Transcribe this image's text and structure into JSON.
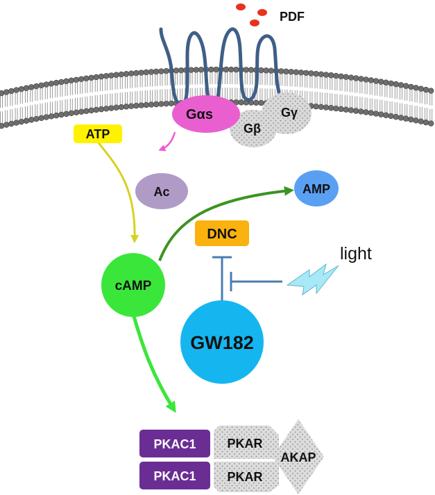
{
  "ligand": {
    "label": "PDF"
  },
  "g_protein": {
    "alpha": "Gαs",
    "beta": "Gβ",
    "gamma": "Gγ"
  },
  "nodes": {
    "atp": "ATP",
    "ac": "Ac",
    "amp": "AMP",
    "dnc": "DNC",
    "camp": "cAMP",
    "gw182": "GW182",
    "light": "light"
  },
  "pka_complex": {
    "catalytic_top": "PKAC1",
    "catalytic_bottom": "PKAC1",
    "regulatory_top": "PKAR",
    "regulatory_bottom": "PKAR",
    "anchor": "AKAP"
  },
  "colors": {
    "receptor": "#3f5f86",
    "ligand_dots": "#e8321e",
    "g_alpha": "#ea5fcf",
    "g_beta_gamma": "#d9d9d9",
    "atp_box": "#fff200",
    "ac_node": "#b09bc7",
    "amp_node": "#5aa0f2",
    "dnc_box": "#fbb20f",
    "camp_node": "#3be63b",
    "gw182_node": "#15b6ef",
    "pkac": "#6a2d94",
    "pkar_akap": "#dcdcdc",
    "arrow_magenta": "#f25ad4",
    "arrow_yellow": "#d7d21f",
    "arrow_darkgreen": "#3b9420",
    "arrow_green": "#3be63b",
    "inhibition": "#4b7cb0",
    "light_bolt": "#a8e9f7"
  }
}
